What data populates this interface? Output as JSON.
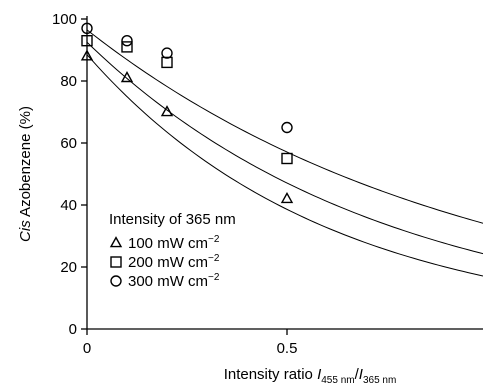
{
  "chart_data": {
    "type": "scatter",
    "title": "",
    "xlabel": {
      "prefix": "Intensity ratio ",
      "i1": "I",
      "s1": "455 nm",
      "slash": "/",
      "i2": "I",
      "s2": "365 nm"
    },
    "ylabel": {
      "italic": "Cis",
      "rest": " Azobenzene (%)"
    },
    "xlim": [
      0,
      0.95
    ],
    "ylim": [
      0,
      100
    ],
    "xticks": [
      {
        "value": 0,
        "label": "0"
      },
      {
        "value": 0.5,
        "label": "0.5"
      }
    ],
    "yticks": [
      {
        "value": 0,
        "label": "0"
      },
      {
        "value": 20,
        "label": "20"
      },
      {
        "value": 40,
        "label": "40"
      },
      {
        "value": 60,
        "label": "60"
      },
      {
        "value": 80,
        "label": "80"
      },
      {
        "value": 100,
        "label": "100"
      }
    ],
    "legend": {
      "title": "Intensity of 365 nm",
      "placement": "lower-left",
      "units_base": "mW cm",
      "units_exp": "−2"
    },
    "series": [
      {
        "name": "100",
        "marker": "triangle",
        "x": [
          0,
          0.1,
          0.2,
          0.5
        ],
        "y": [
          88,
          81,
          70,
          42
        ],
        "fit": {
          "a": 88.5,
          "b": 1.66
        }
      },
      {
        "name": "200",
        "marker": "square",
        "x": [
          0,
          0.1,
          0.2,
          0.5
        ],
        "y": [
          93,
          91,
          86,
          55
        ],
        "fit": {
          "a": 92.5,
          "b": 1.35
        }
      },
      {
        "name": "300",
        "marker": "circle",
        "x": [
          0,
          0.1,
          0.2,
          0.5
        ],
        "y": [
          97,
          93,
          89,
          65
        ],
        "fit": {
          "a": 96.5,
          "b": 1.05
        }
      }
    ]
  }
}
